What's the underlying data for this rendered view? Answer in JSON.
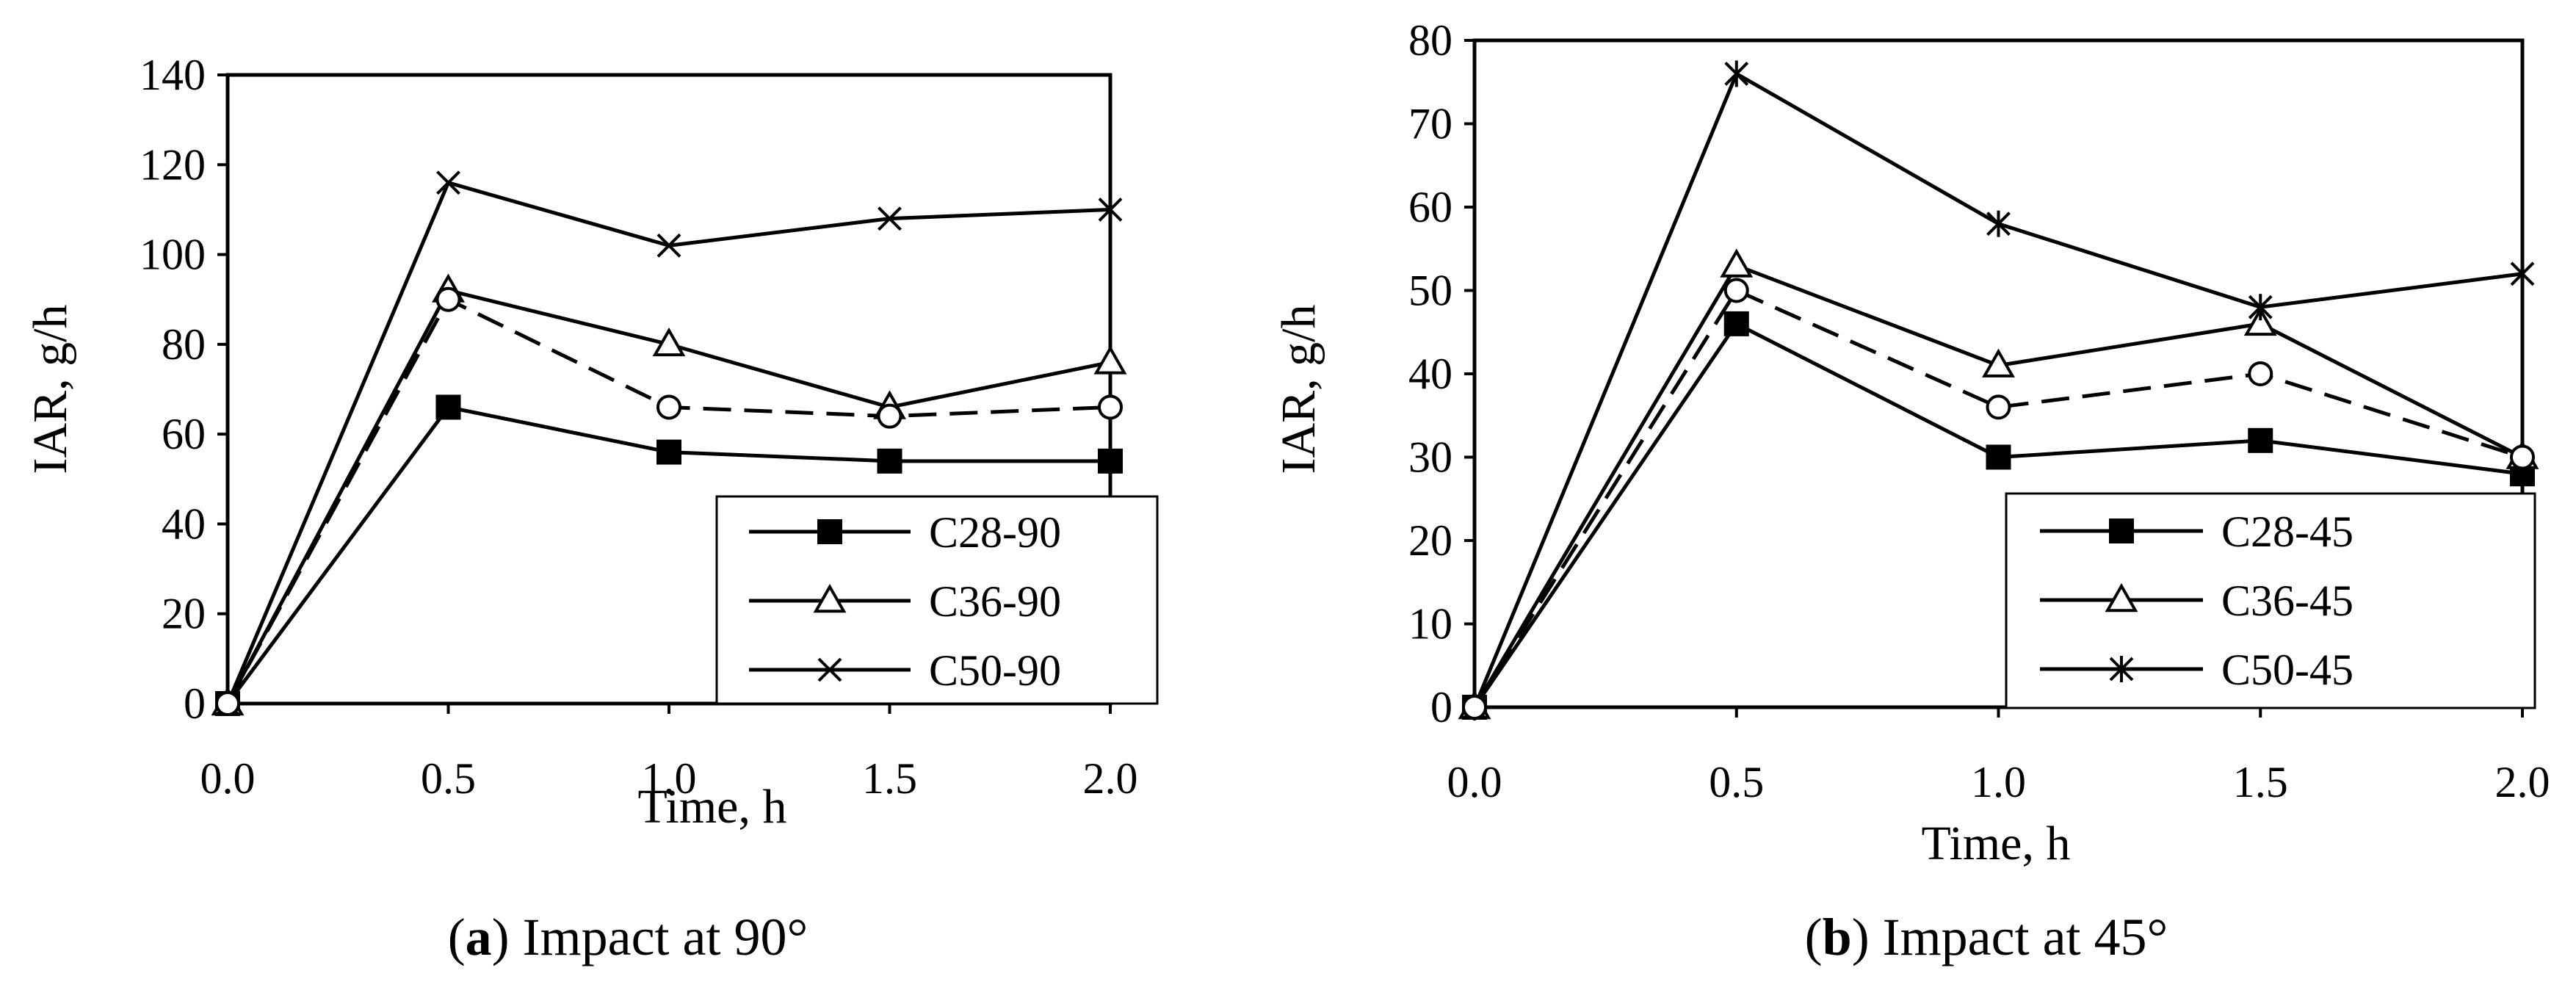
{
  "chart_data": [
    {
      "type": "line",
      "panel": "a",
      "caption": {
        "letter": "a",
        "text": " Impact at 90°"
      },
      "xlabel": "Time, h",
      "ylabel": "IAR, g/h",
      "xlim": [
        0,
        2
      ],
      "ylim": [
        0,
        140
      ],
      "xticks": [
        "0.0",
        "0.5",
        "1.0",
        "1.5",
        "2.0"
      ],
      "yticks": [
        "0",
        "20",
        "40",
        "60",
        "80",
        "100",
        "120",
        "140"
      ],
      "x": [
        0,
        0.5,
        1.0,
        1.5,
        2.0
      ],
      "legend_position": "bottom-right",
      "series": [
        {
          "name": "C28-90",
          "marker": "square-filled",
          "dash": "solid",
          "in_legend": true,
          "values": [
            0,
            66,
            56,
            54,
            54
          ]
        },
        {
          "name": "C36-90",
          "marker": "triangle-open",
          "dash": "solid",
          "in_legend": true,
          "values": [
            0,
            92,
            80,
            66,
            76
          ]
        },
        {
          "name": "C50-90",
          "marker": "x",
          "dash": "solid",
          "in_legend": true,
          "values": [
            0,
            116,
            102,
            108,
            110
          ]
        },
        {
          "name": "",
          "marker": "circle-open",
          "dash": "dashed",
          "in_legend": false,
          "values": [
            0,
            90,
            66,
            64,
            66
          ]
        }
      ]
    },
    {
      "type": "line",
      "panel": "b",
      "caption": {
        "letter": "b",
        "text": " Impact at 45°"
      },
      "xlabel": "Time, h",
      "ylabel": "IAR, g/h",
      "xlim": [
        0,
        2
      ],
      "ylim": [
        0,
        80
      ],
      "xticks": [
        "0.0",
        "0.5",
        "1.0",
        "1.5",
        "2.0"
      ],
      "yticks": [
        "0",
        "10",
        "20",
        "30",
        "40",
        "50",
        "60",
        "70",
        "80"
      ],
      "x": [
        0,
        0.5,
        1.0,
        1.5,
        2.0
      ],
      "legend_position": "bottom-right",
      "series": [
        {
          "name": "C28-45",
          "marker": "square-filled",
          "dash": "solid",
          "in_legend": true,
          "values": [
            0,
            46,
            30,
            32,
            28
          ]
        },
        {
          "name": "C36-45",
          "marker": "triangle-open",
          "dash": "solid",
          "in_legend": true,
          "values": [
            0,
            53,
            41,
            46,
            30
          ]
        },
        {
          "name": "C50-45",
          "marker": "asterisk",
          "dash": "solid",
          "in_legend": true,
          "values": [
            0,
            76,
            58,
            48,
            52
          ]
        },
        {
          "name": "",
          "marker": "circle-open",
          "dash": "dashed",
          "in_legend": false,
          "values": [
            0,
            50,
            36,
            40,
            30
          ]
        }
      ]
    }
  ]
}
